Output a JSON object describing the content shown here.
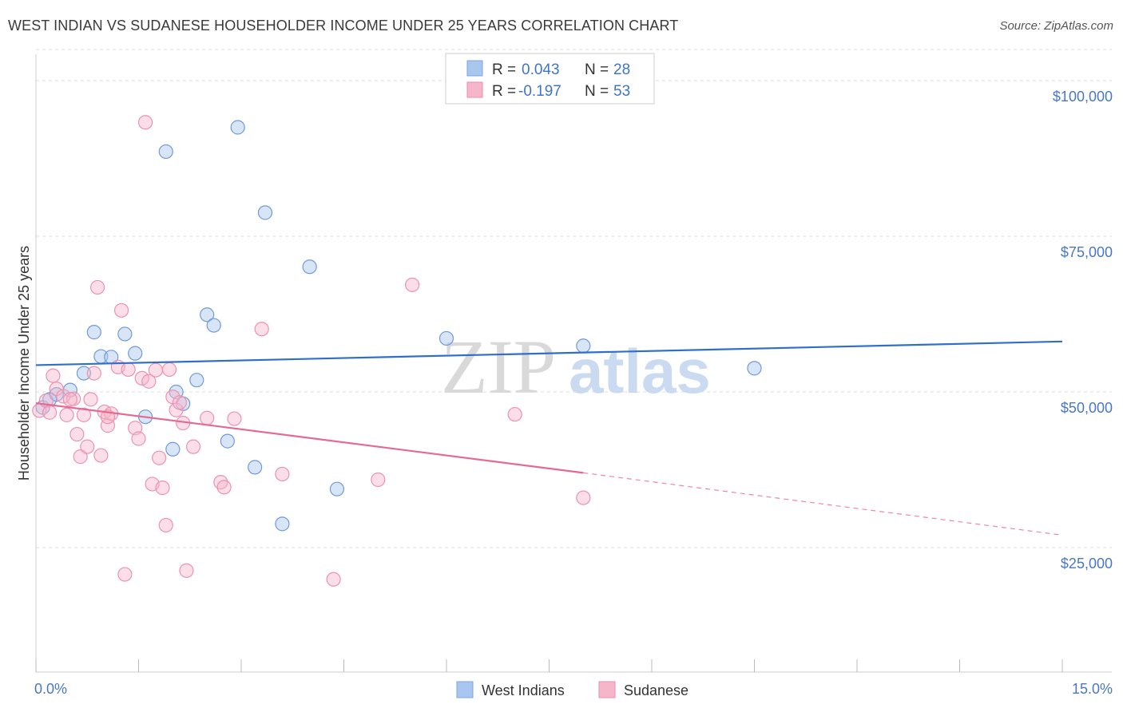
{
  "title": "WEST INDIAN VS SUDANESE HOUSEHOLDER INCOME UNDER 25 YEARS CORRELATION CHART",
  "source": "Source: ZipAtlas.com",
  "watermark": {
    "zip": "ZIP",
    "atlas": "atlas"
  },
  "colors": {
    "west_indians": "#a9c6ee",
    "west_indians_line": "#2f6fc9",
    "sudanese": "#f6b6ca",
    "sudanese_line": "#e56a93",
    "axis_text": "#4a78c0",
    "grid": "#dddddd"
  },
  "legend_top": {
    "rows": [
      {
        "r_label": "R = ",
        "r_value": "0.043",
        "n_label": "N = ",
        "n_value": "28"
      },
      {
        "r_label": "R = ",
        "r_value": "-0.197",
        "n_label": "N = ",
        "n_value": "53"
      }
    ]
  },
  "chart_data": {
    "type": "scatter",
    "xlabel": "",
    "ylabel": "Householder Income Under 25 years",
    "xlim": [
      0,
      15
    ],
    "ylim": [
      5000,
      105000
    ],
    "x_tick_labels": [
      "0.0%",
      "15.0%"
    ],
    "y_ticks": [
      25000,
      50000,
      75000,
      100000
    ],
    "y_tick_labels": [
      "$25,000",
      "$50,000",
      "$75,000",
      "$100,000"
    ],
    "grid": true,
    "legend_position": "bottom-center",
    "series": [
      {
        "name": "West Indians",
        "points": [
          [
            0.1,
            47500
          ],
          [
            0.2,
            48800
          ],
          [
            0.3,
            49600
          ],
          [
            0.5,
            50300
          ],
          [
            0.7,
            53000
          ],
          [
            0.85,
            59600
          ],
          [
            0.95,
            55700
          ],
          [
            1.1,
            55600
          ],
          [
            1.3,
            59300
          ],
          [
            1.45,
            56200
          ],
          [
            1.6,
            46000
          ],
          [
            1.9,
            88600
          ],
          [
            2.0,
            40800
          ],
          [
            2.05,
            50000
          ],
          [
            2.15,
            48100
          ],
          [
            2.35,
            51900
          ],
          [
            2.5,
            62400
          ],
          [
            2.6,
            60700
          ],
          [
            2.8,
            42100
          ],
          [
            2.95,
            92500
          ],
          [
            3.2,
            37900
          ],
          [
            3.35,
            78800
          ],
          [
            3.6,
            28800
          ],
          [
            4.0,
            70100
          ],
          [
            4.4,
            34400
          ],
          [
            6.0,
            58600
          ],
          [
            8.0,
            57400
          ],
          [
            10.5,
            53800
          ]
        ],
        "trend": [
          [
            0,
            54300
          ],
          [
            15,
            58100
          ]
        ]
      },
      {
        "name": "Sudanese",
        "points": [
          [
            0.05,
            47000
          ],
          [
            0.15,
            48600
          ],
          [
            0.25,
            52600
          ],
          [
            0.3,
            50500
          ],
          [
            0.4,
            49300
          ],
          [
            0.45,
            46300
          ],
          [
            0.55,
            48900
          ],
          [
            0.6,
            43200
          ],
          [
            0.65,
            39600
          ],
          [
            0.7,
            46300
          ],
          [
            0.75,
            41200
          ],
          [
            0.8,
            48800
          ],
          [
            0.85,
            53000
          ],
          [
            0.9,
            66800
          ],
          [
            0.95,
            39800
          ],
          [
            1.0,
            46800
          ],
          [
            1.05,
            44600
          ],
          [
            1.1,
            46500
          ],
          [
            1.2,
            54000
          ],
          [
            1.25,
            63100
          ],
          [
            1.3,
            20700
          ],
          [
            1.35,
            53600
          ],
          [
            1.45,
            44200
          ],
          [
            1.5,
            42500
          ],
          [
            1.55,
            52200
          ],
          [
            1.6,
            93300
          ],
          [
            1.65,
            51700
          ],
          [
            1.7,
            35200
          ],
          [
            1.75,
            53500
          ],
          [
            1.8,
            39400
          ],
          [
            1.85,
            34600
          ],
          [
            1.9,
            28600
          ],
          [
            1.95,
            53600
          ],
          [
            2.0,
            49200
          ],
          [
            2.05,
            47100
          ],
          [
            2.1,
            48300
          ],
          [
            2.15,
            45000
          ],
          [
            2.2,
            21300
          ],
          [
            2.3,
            41200
          ],
          [
            2.5,
            45800
          ],
          [
            2.7,
            35500
          ],
          [
            2.75,
            34700
          ],
          [
            2.9,
            45700
          ],
          [
            3.3,
            60100
          ],
          [
            3.6,
            36800
          ],
          [
            4.35,
            19900
          ],
          [
            5.0,
            35900
          ],
          [
            5.5,
            67200
          ],
          [
            7.0,
            46400
          ],
          [
            8.0,
            33000
          ],
          [
            0.5,
            48800
          ],
          [
            1.05,
            46000
          ],
          [
            0.2,
            46700
          ]
        ],
        "trend_solid": [
          [
            0,
            48200
          ],
          [
            8.0,
            37000
          ]
        ],
        "trend_dashed": [
          [
            8.0,
            37000
          ],
          [
            15,
            27000
          ]
        ]
      }
    ]
  },
  "bottom_legend": [
    {
      "label": "West Indians"
    },
    {
      "label": "Sudanese"
    }
  ]
}
